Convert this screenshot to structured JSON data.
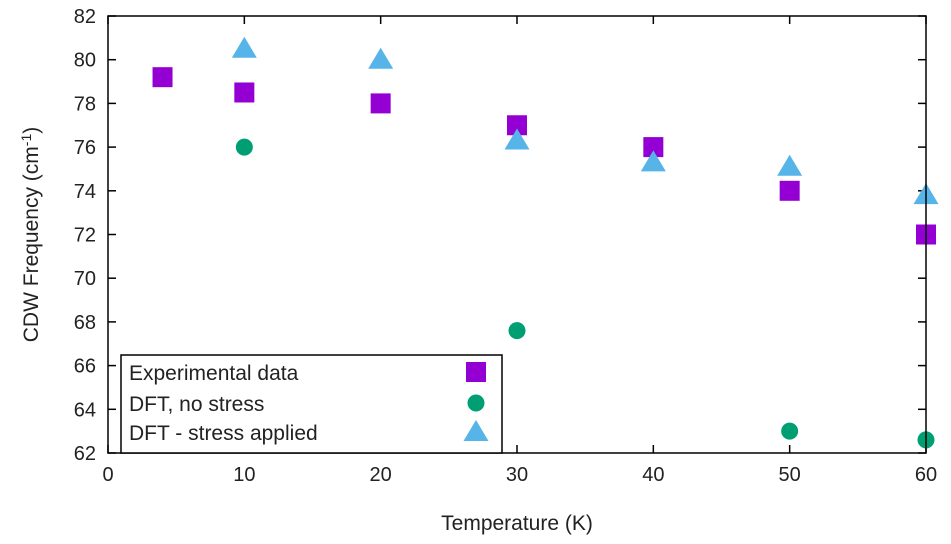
{
  "chart_data": {
    "type": "scatter",
    "title": "",
    "xlabel": "Temperature (K)",
    "ylabel_main": "CDW Frequency (cm",
    "ylabel_sup": "-1",
    "ylabel_close": ")",
    "xlim": [
      0,
      60
    ],
    "ylim": [
      62,
      82
    ],
    "xticks": [
      0,
      10,
      20,
      30,
      40,
      50,
      60
    ],
    "yticks": [
      62,
      64,
      66,
      68,
      70,
      72,
      74,
      76,
      78,
      80,
      82
    ],
    "grid": false,
    "legend_position": "bottom-left",
    "series": [
      {
        "name": "Experimental data",
        "marker": "square",
        "color": "#9400D3",
        "x": [
          4,
          10,
          20,
          30,
          40,
          50,
          60
        ],
        "y": [
          79.2,
          78.5,
          78.0,
          77.0,
          76.0,
          74.0,
          72.0
        ]
      },
      {
        "name": "DFT, no stress",
        "marker": "circle",
        "color": "#009E73",
        "x": [
          10,
          30,
          50,
          60
        ],
        "y": [
          76.0,
          67.6,
          63.0,
          62.6
        ]
      },
      {
        "name": "DFT - stress applied",
        "marker": "triangle",
        "color": "#56B4E9",
        "x": [
          10,
          20,
          30,
          40,
          50,
          60
        ],
        "y": [
          80.5,
          80.0,
          76.3,
          75.3,
          75.1,
          73.8
        ]
      }
    ]
  }
}
